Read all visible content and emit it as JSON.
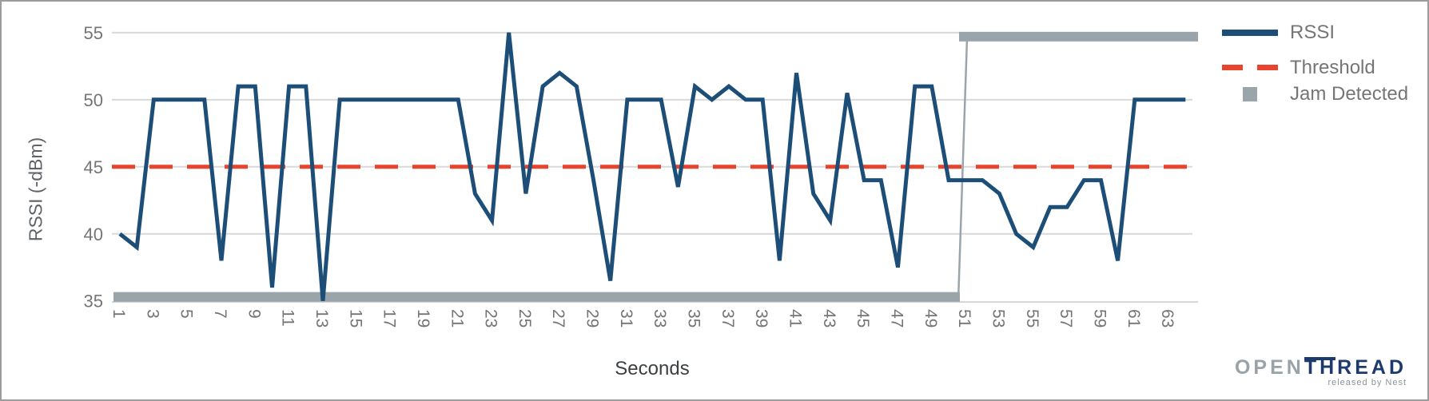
{
  "chart_data": {
    "type": "line",
    "title": "",
    "xlabel": "Seconds",
    "ylabel": "RSSI (-dBm)",
    "xlim": [
      1,
      64
    ],
    "ylim": [
      35,
      55
    ],
    "grid": true,
    "legend_position": "right",
    "y_tick_labels": [
      55,
      50,
      45,
      40,
      35
    ],
    "x_tick_labels": [
      1,
      3,
      5,
      7,
      9,
      11,
      13,
      15,
      17,
      19,
      21,
      23,
      25,
      27,
      29,
      31,
      33,
      35,
      37,
      39,
      41,
      43,
      45,
      47,
      49,
      51,
      53,
      55,
      57,
      59,
      61,
      63
    ],
    "x": [
      1,
      2,
      3,
      4,
      5,
      6,
      7,
      8,
      9,
      10,
      11,
      12,
      13,
      14,
      15,
      16,
      17,
      18,
      19,
      20,
      21,
      22,
      23,
      24,
      25,
      26,
      27,
      28,
      29,
      30,
      31,
      32,
      33,
      34,
      35,
      36,
      37,
      38,
      39,
      40,
      41,
      42,
      43,
      44,
      45,
      46,
      47,
      48,
      49,
      50,
      51,
      52,
      53,
      54,
      55,
      56,
      57,
      58,
      59,
      60,
      61,
      62,
      63,
      64
    ],
    "series": [
      {
        "name": "RSSI",
        "values": [
          40,
          39,
          50,
          50,
          50,
          50,
          38,
          51,
          51,
          36,
          51,
          51,
          35,
          50,
          50,
          50,
          50,
          50,
          50,
          50,
          50,
          43,
          41,
          55,
          43,
          51,
          52,
          51,
          44,
          36.5,
          50,
          50,
          50,
          43.5,
          51,
          50,
          51,
          50,
          50,
          38,
          52,
          43,
          41,
          50.5,
          44,
          44,
          37.5,
          51,
          51,
          44,
          44,
          44,
          43,
          40,
          39,
          42,
          42,
          44,
          44,
          38,
          50,
          50,
          50,
          50
        ]
      },
      {
        "name": "Threshold",
        "constant_value": 45
      },
      {
        "name": "Jam Detected",
        "value_inactive": 35.3,
        "value_active": 54.7,
        "inactive_through_second": 50,
        "active_from_second": 51
      }
    ]
  },
  "legend": {
    "items": [
      {
        "label": "RSSI",
        "swatch": "solid-line"
      },
      {
        "label": "Threshold",
        "swatch": "dashed-line"
      },
      {
        "label": "Jam Detected",
        "swatch": "square"
      }
    ]
  },
  "branding": {
    "logo_open": "OPEN",
    "logo_th": "TH",
    "logo_read": "READ",
    "tagline": "released by Nest"
  },
  "colors": {
    "rssi": "#1C4E78",
    "threshold": "#E8432D",
    "jam": "#9AA5AB",
    "gridline": "#D9D9D9",
    "baseline": "#C8C8C8",
    "tick_text": "#757575"
  }
}
